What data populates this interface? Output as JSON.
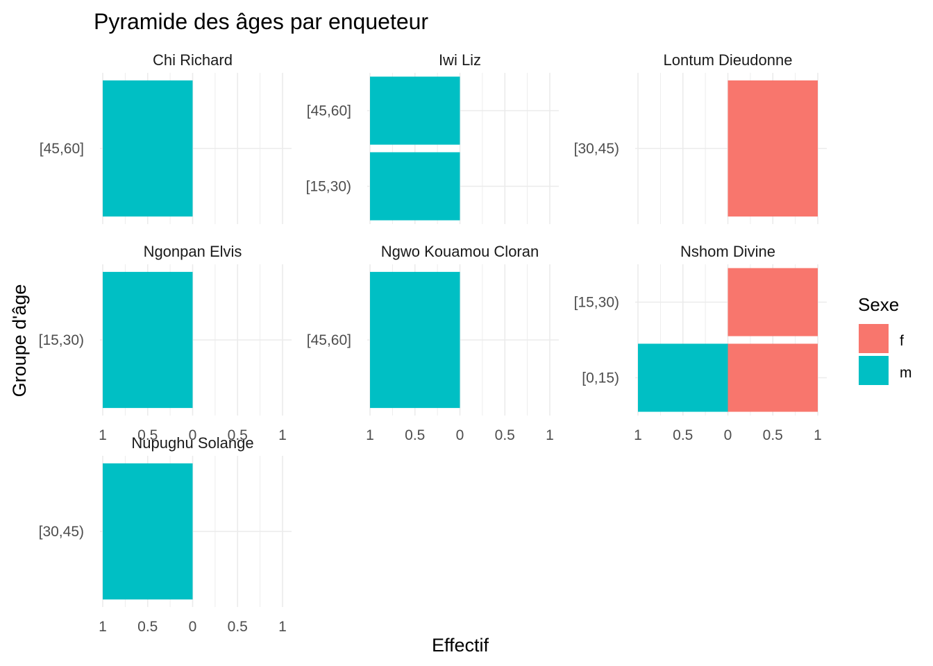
{
  "chart_data": {
    "type": "bar",
    "orientation": "horizontal",
    "layout": "faceted population pyramid",
    "title": "Pyramide des âges par enqueteur",
    "xlabel": "Effectif",
    "ylabel": "Groupe d'âge",
    "xlim": [
      -1,
      1
    ],
    "x_tick_labels": [
      "1",
      "0.5",
      "0",
      "0.5",
      "1"
    ],
    "grid": true,
    "legend": {
      "title": "Sexe",
      "position": "right",
      "entries": [
        {
          "label": "f",
          "color": "#F8766D"
        },
        {
          "label": "m",
          "color": "#00BFC4"
        }
      ]
    },
    "series_colors": {
      "f": "#F8766D",
      "m": "#00BFC4"
    },
    "note": "male counts plotted to the left (negative), female to the right",
    "facets": [
      {
        "name": "Chi Richard",
        "categories": [
          "[45,60]"
        ],
        "bars": [
          {
            "category": "[45,60]",
            "sexe": "m",
            "value": 1
          }
        ]
      },
      {
        "name": "Iwi Liz",
        "categories": [
          "[15,30)",
          "[45,60]"
        ],
        "bars": [
          {
            "category": "[15,30)",
            "sexe": "m",
            "value": 1
          },
          {
            "category": "[45,60]",
            "sexe": "m",
            "value": 1
          }
        ]
      },
      {
        "name": "Lontum Dieudonne",
        "categories": [
          "[30,45)"
        ],
        "bars": [
          {
            "category": "[30,45)",
            "sexe": "f",
            "value": 1
          }
        ]
      },
      {
        "name": "Ngonpan Elvis",
        "categories": [
          "[15,30)"
        ],
        "bars": [
          {
            "category": "[15,30)",
            "sexe": "m",
            "value": 1
          }
        ]
      },
      {
        "name": "Ngwo Kouamou Cloran",
        "categories": [
          "[45,60]"
        ],
        "bars": [
          {
            "category": "[45,60]",
            "sexe": "m",
            "value": 1
          }
        ]
      },
      {
        "name": "Nshom Divine",
        "categories": [
          "[0,15)",
          "[15,30)"
        ],
        "bars": [
          {
            "category": "[0,15)",
            "sexe": "m",
            "value": 1
          },
          {
            "category": "[0,15)",
            "sexe": "f",
            "value": 1
          },
          {
            "category": "[15,30)",
            "sexe": "f",
            "value": 1
          }
        ]
      },
      {
        "name": "Nupughu Solange",
        "categories": [
          "[30,45)"
        ],
        "bars": [
          {
            "category": "[30,45)",
            "sexe": "m",
            "value": 1
          }
        ]
      }
    ]
  }
}
